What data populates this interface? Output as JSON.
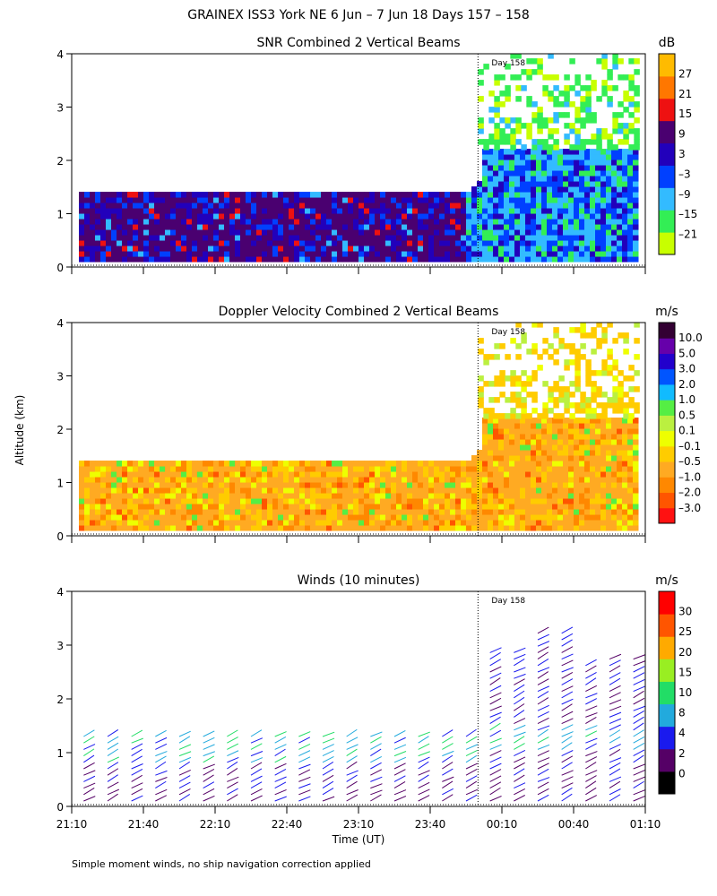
{
  "title": "GRAINEX ISS3 York NE   6 Jun –  7 Jun 18 Days 157 – 158",
  "ylabel": "Altitude (km)",
  "xlabel": "Time (UT)",
  "footnote": "Simple moment winds, no ship navigation correction applied",
  "chart_data": [
    {
      "type": "heatmap",
      "title": "SNR Combined 2 Vertical Beams",
      "x_ticks": [
        "21:10",
        "21:40",
        "22:10",
        "22:40",
        "23:10",
        "23:40",
        "00:10",
        "00:40",
        "01:10"
      ],
      "y_ticks": [
        0,
        1,
        2,
        3,
        4
      ],
      "ylim": [
        0,
        4
      ],
      "day_marker": {
        "time": "00:00",
        "label": "Day 158"
      },
      "colorbar": {
        "unit": "dB",
        "ticks": [
          "27",
          "21",
          "15",
          "9",
          "3",
          "–3",
          "–9",
          "–15",
          "–21"
        ],
        "colors": [
          "#c8ff00",
          "#33ee55",
          "#33bbff",
          "#0040ff",
          "#2200bb",
          "#4a0070",
          "#ee1111",
          "#ff7700",
          "#ffbb00"
        ]
      },
      "regions": [
        {
          "time_range": [
            "21:10",
            "23:55"
          ],
          "alt_range": [
            0.1,
            1.4
          ],
          "dominant": "9 to 3"
        },
        {
          "time_range": [
            "23:55",
            "01:10"
          ],
          "alt_range": [
            0.1,
            2.2
          ],
          "dominant": "–3 to –15"
        },
        {
          "time_range": [
            "00:00",
            "01:10"
          ],
          "alt_range": [
            2.2,
            4.0
          ],
          "dominant": "–15 to –21"
        }
      ]
    },
    {
      "type": "heatmap",
      "title": "Doppler Velocity Combined 2 Vertical Beams",
      "x_ticks": [
        "21:10",
        "21:40",
        "22:10",
        "22:40",
        "23:10",
        "23:40",
        "00:10",
        "00:40",
        "01:10"
      ],
      "y_ticks": [
        0,
        1,
        2,
        3,
        4
      ],
      "ylim": [
        0,
        4
      ],
      "day_marker": {
        "time": "00:00",
        "label": "Day 158"
      },
      "colorbar": {
        "unit": "m/s",
        "ticks": [
          "10.0",
          "5.0",
          "3.0",
          "2.0",
          "1.0",
          "0.5",
          "0.1",
          "–0.1",
          "–0.5",
          "–1.0",
          "–2.0",
          "–3.0"
        ],
        "colors": [
          "#ff1111",
          "#ff5500",
          "#ff8800",
          "#ffaa22",
          "#ffcc00",
          "#eeff00",
          "#bbf040",
          "#55ee44",
          "#11bbff",
          "#0055ff",
          "#2200cc",
          "#6600aa",
          "#330033"
        ]
      },
      "regions": [
        {
          "time_range": [
            "21:10",
            "23:55"
          ],
          "alt_range": [
            0.1,
            1.4
          ],
          "dominant": "–0.5 to –1.0"
        },
        {
          "time_range": [
            "23:55",
            "01:10"
          ],
          "alt_range": [
            0.1,
            2.2
          ],
          "dominant": "–0.5 to –1.0"
        },
        {
          "time_range": [
            "00:00",
            "01:10"
          ],
          "alt_range": [
            2.2,
            4.0
          ],
          "dominant": "0.1 to –0.5"
        }
      ]
    },
    {
      "type": "scatter",
      "title": "Winds (10 minutes)",
      "x_ticks": [
        "21:10",
        "21:40",
        "22:10",
        "22:40",
        "23:10",
        "23:40",
        "00:10",
        "00:40",
        "01:10"
      ],
      "y_ticks": [
        0,
        1,
        2,
        3,
        4
      ],
      "ylim": [
        0,
        4
      ],
      "day_marker": {
        "time": "00:00",
        "label": "Day 158"
      },
      "colorbar": {
        "unit": "m/s",
        "ticks": [
          "30",
          "25",
          "20",
          "15",
          "10",
          "8",
          "4",
          "2",
          "0"
        ],
        "colors": [
          "#000000",
          "#550066",
          "#1a1aee",
          "#22aadd",
          "#22dd66",
          "#99ee22",
          "#ffaa00",
          "#ff5500",
          "#ff0000"
        ]
      },
      "profiles_time_range": [
        "21:10",
        "01:10"
      ],
      "interval_minutes": 10
    }
  ]
}
